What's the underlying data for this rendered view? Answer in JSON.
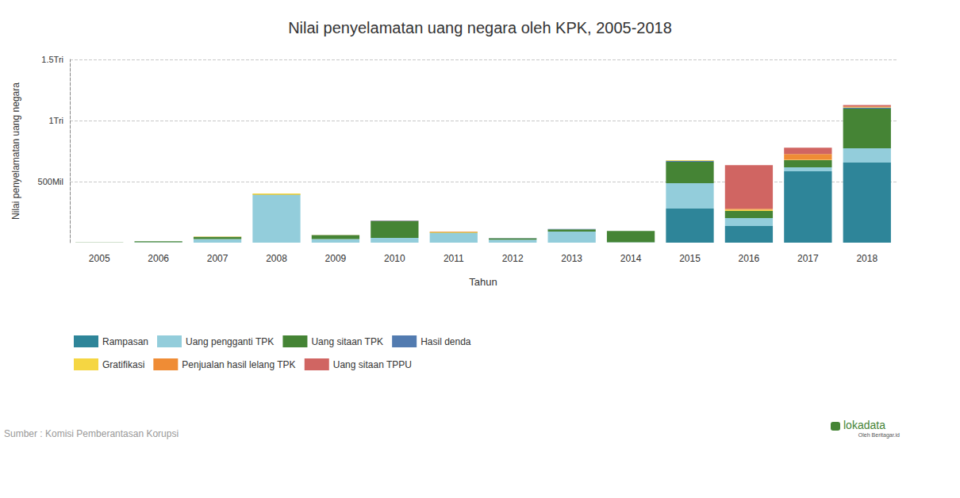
{
  "chart_data": {
    "type": "bar",
    "title": "Nilai penyelamatan uang negara oleh KPK, 2005-2018",
    "x_label": "Tahun",
    "y_label": "Nilai penyelamatan uang negara",
    "source": "Sumber : Komisi Pemberantasan Korupsi",
    "credit": "lokadata",
    "credit_sub": "Oleh Beritagar.id",
    "stacked": true,
    "grid": true,
    "legend": "bottom",
    "categories": [
      "2005",
      "2006",
      "2007",
      "2008",
      "2009",
      "2010",
      "2011",
      "2012",
      "2013",
      "2014",
      "2015",
      "2016",
      "2017",
      "2018"
    ],
    "ylim": [
      0,
      1500
    ],
    "yticks": [
      {
        "value": 500,
        "label": "500Mil"
      },
      {
        "value": 1000,
        "label": "1Tri"
      },
      {
        "value": 1500,
        "label": "1.5Tri"
      }
    ],
    "series": [
      {
        "name": "Rampasan",
        "color": "#2e8599",
        "values": [
          0,
          0,
          0,
          0,
          0,
          0,
          0,
          0,
          0,
          0,
          279,
          136,
          584,
          656
        ]
      },
      {
        "name": "Uang pengganti TPK",
        "color": "#93cddb",
        "values": [
          0,
          3,
          30,
          390,
          30,
          39,
          78,
          25,
          91,
          3,
          208,
          65,
          33,
          117
        ]
      },
      {
        "name": "Uang sitaan TPK",
        "color": "#458435",
        "values": [
          1,
          8,
          17,
          3,
          32,
          137,
          3,
          10,
          18,
          92,
          175,
          59,
          58,
          324
        ]
      },
      {
        "name": "Hasil denda",
        "color": "#527bb0",
        "values": [
          0,
          1,
          1,
          0,
          2,
          5,
          0,
          3,
          3,
          0,
          8,
          0,
          0,
          8
        ]
      },
      {
        "name": "Gratifikasi",
        "color": "#f5d642",
        "values": [
          0,
          0,
          4,
          10,
          1,
          0,
          5,
          0,
          0,
          0,
          5,
          10,
          4,
          4
        ]
      },
      {
        "name": "Penjualan hasil lelang TPK",
        "color": "#ef8c35",
        "values": [
          0,
          0,
          0,
          0,
          0,
          1,
          5,
          0,
          0,
          0,
          0,
          8,
          47,
          6
        ]
      },
      {
        "name": "Uang sitaan TPPU",
        "color": "#d06562",
        "values": [
          0,
          0,
          0,
          0,
          0,
          0,
          0,
          0,
          0,
          0,
          0,
          357,
          52,
          12
        ]
      }
    ]
  }
}
